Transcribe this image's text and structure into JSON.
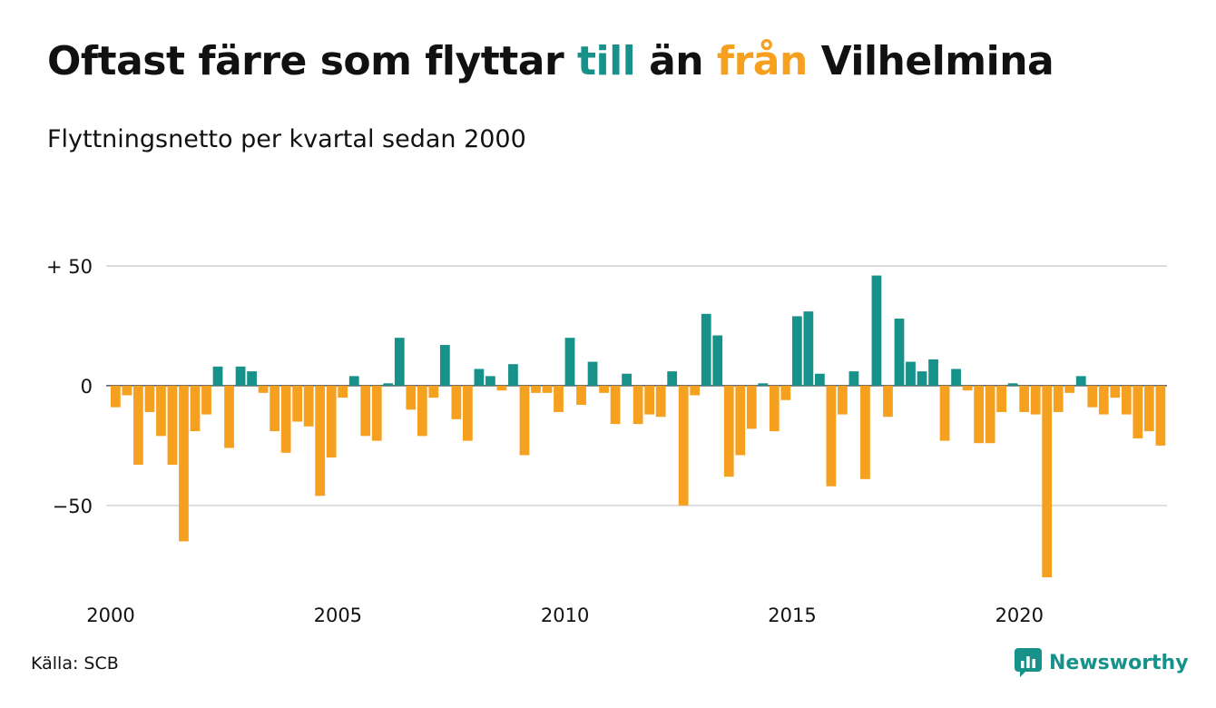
{
  "title": {
    "part1": "Oftast färre som flyttar ",
    "till": "till",
    "part2": " än ",
    "fran": "från",
    "part3": " Vilhelmina"
  },
  "subtitle": "Flyttningsnetto per kvartal sedan 2000",
  "source": "Källa: SCB",
  "brand": {
    "name": "Newsworthy",
    "logo_icon": "newsworthy-bar-chart-icon"
  },
  "colors": {
    "positive": "#17928a",
    "negative": "#f5a01f",
    "grid": "#dddddd",
    "text": "#111111"
  },
  "chart_data": {
    "type": "bar",
    "x_start": 2000,
    "period": "quarter",
    "values": [
      -9,
      -4,
      -33,
      -11,
      -21,
      -33,
      -65,
      -19,
      -12,
      8,
      -26,
      8,
      6,
      -3,
      -19,
      -28,
      -15,
      -17,
      -46,
      -30,
      -5,
      4,
      -21,
      -23,
      1,
      20,
      -10,
      -21,
      -5,
      17,
      -14,
      -23,
      7,
      4,
      -2,
      9,
      -29,
      -3,
      -3,
      -11,
      20,
      -8,
      10,
      -3,
      -16,
      5,
      -16,
      -12,
      -13,
      6,
      -50,
      -4,
      30,
      21,
      -38,
      -29,
      -18,
      1,
      -19,
      -6,
      29,
      31,
      5,
      -42,
      -12,
      6,
      -39,
      46,
      -13,
      28,
      10,
      6,
      11,
      -23,
      7,
      -2,
      -24,
      -24,
      -11,
      1,
      -11,
      -12,
      -80,
      -11,
      -3,
      4,
      -9,
      -12,
      -5,
      -12,
      -22,
      -19,
      -25
    ],
    "y_ticks": [
      {
        "value": 50,
        "label": "+ 50"
      },
      {
        "value": 0,
        "label": "0"
      },
      {
        "value": -50,
        "label": "−50"
      }
    ],
    "x_ticks": [
      {
        "value": 2000,
        "label": "2000"
      },
      {
        "value": 2005,
        "label": "2005"
      },
      {
        "value": 2010,
        "label": "2010"
      },
      {
        "value": 2015,
        "label": "2015"
      },
      {
        "value": 2020,
        "label": "2020"
      }
    ],
    "ylim": [
      -80,
      50
    ],
    "xlim": [
      2000,
      2023.25
    ],
    "grid": true,
    "legend": "none"
  }
}
